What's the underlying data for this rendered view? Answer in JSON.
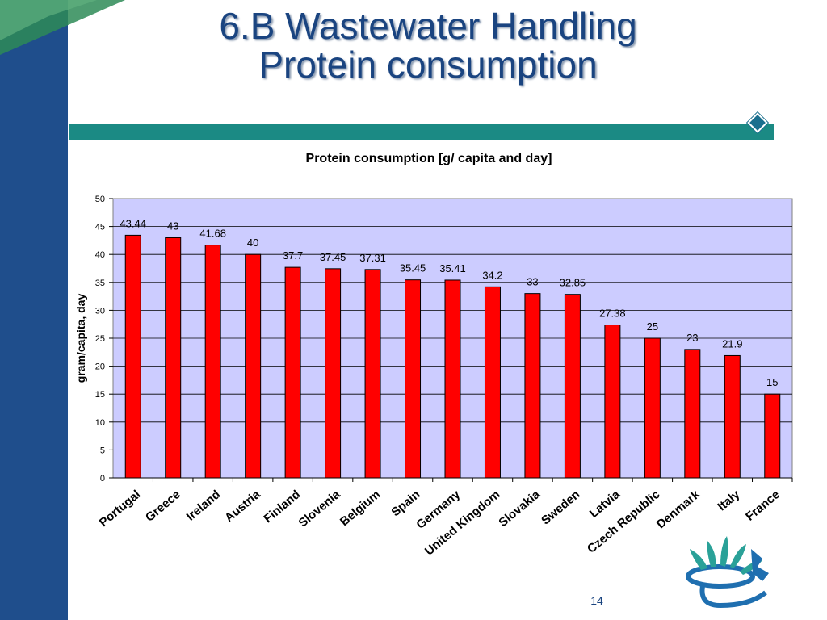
{
  "slide": {
    "title_line1": "6.B Wastewater Handling",
    "title_line2": "Protein consumption",
    "slide_number": "14"
  },
  "colors": {
    "bar_fill": "#ff0000",
    "plot_background": "#ccccff",
    "sidebar": "#1f4e8c",
    "title_bar": "#1b8a84",
    "title_text": "#1a4480"
  },
  "chart_data": {
    "type": "bar",
    "title": "Protein consumption [g/ capita and day]",
    "xlabel": "",
    "ylabel": "gram/capita, day",
    "ylim": [
      0,
      50
    ],
    "yticks": [
      0,
      5,
      10,
      15,
      20,
      25,
      30,
      35,
      40,
      45,
      50
    ],
    "grid": true,
    "legend": "none",
    "categories": [
      "Portugal",
      "Greece",
      "Ireland",
      "Austria",
      "Finland",
      "Slovenia",
      "Belgium",
      "Spain",
      "Germany",
      "United Kingdom",
      "Slovakia",
      "Sweden",
      "Latvia",
      "Czech Republic",
      "Denmark",
      "Italy",
      "France"
    ],
    "values": [
      43.44,
      43,
      41.68,
      40,
      37.7,
      37.45,
      37.31,
      35.45,
      35.41,
      34.2,
      33,
      32.85,
      27.38,
      25,
      23,
      21.9,
      15
    ],
    "data_labels": [
      "43.44",
      "43",
      "41.68",
      "40",
      "37.7",
      "37.45",
      "37.31",
      "35.45",
      "35.41",
      "34.2",
      "33",
      "32.85",
      "27.38",
      "25",
      "23",
      "21.9",
      "15"
    ]
  }
}
